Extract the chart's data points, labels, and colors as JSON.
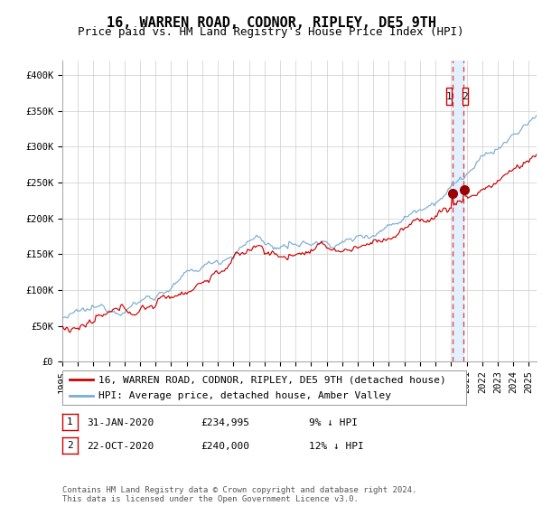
{
  "title": "16, WARREN ROAD, CODNOR, RIPLEY, DE5 9TH",
  "subtitle": "Price paid vs. HM Land Registry's House Price Index (HPI)",
  "ylim": [
    0,
    420000
  ],
  "yticks": [
    0,
    50000,
    100000,
    150000,
    200000,
    250000,
    300000,
    350000,
    400000
  ],
  "ytick_labels": [
    "£0",
    "£50K",
    "£100K",
    "£150K",
    "£200K",
    "£250K",
    "£300K",
    "£350K",
    "£400K"
  ],
  "xlim_start": 1995.0,
  "xlim_end": 2025.5,
  "xticks": [
    1995,
    1996,
    1997,
    1998,
    1999,
    2000,
    2001,
    2002,
    2003,
    2004,
    2005,
    2006,
    2007,
    2008,
    2009,
    2010,
    2011,
    2012,
    2013,
    2014,
    2015,
    2016,
    2017,
    2018,
    2019,
    2020,
    2021,
    2022,
    2023,
    2024,
    2025
  ],
  "background_color": "#ffffff",
  "grid_color": "#cccccc",
  "hpi_color": "#7aadd4",
  "price_color": "#cc0000",
  "marker_color": "#990000",
  "vline_color": "#dd4444",
  "vband_color": "#ddeeff",
  "legend_label_price": "16, WARREN ROAD, CODNOR, RIPLEY, DE5 9TH (detached house)",
  "legend_label_hpi": "HPI: Average price, detached house, Amber Valley",
  "transaction1_date": 2020.083,
  "transaction1_price": 234995,
  "transaction2_date": 2020.8,
  "transaction2_price": 240000,
  "table_rows": [
    {
      "num": "1",
      "date": "31-JAN-2020",
      "price": "£234,995",
      "pct": "9% ↓ HPI"
    },
    {
      "num": "2",
      "date": "22-OCT-2020",
      "price": "£240,000",
      "pct": "12% ↓ HPI"
    }
  ],
  "footnote": "Contains HM Land Registry data © Crown copyright and database right 2024.\nThis data is licensed under the Open Government Licence v3.0.",
  "title_fontsize": 11,
  "subtitle_fontsize": 9,
  "tick_fontsize": 7.5,
  "legend_fontsize": 8,
  "table_fontsize": 8,
  "footnote_fontsize": 6.5
}
